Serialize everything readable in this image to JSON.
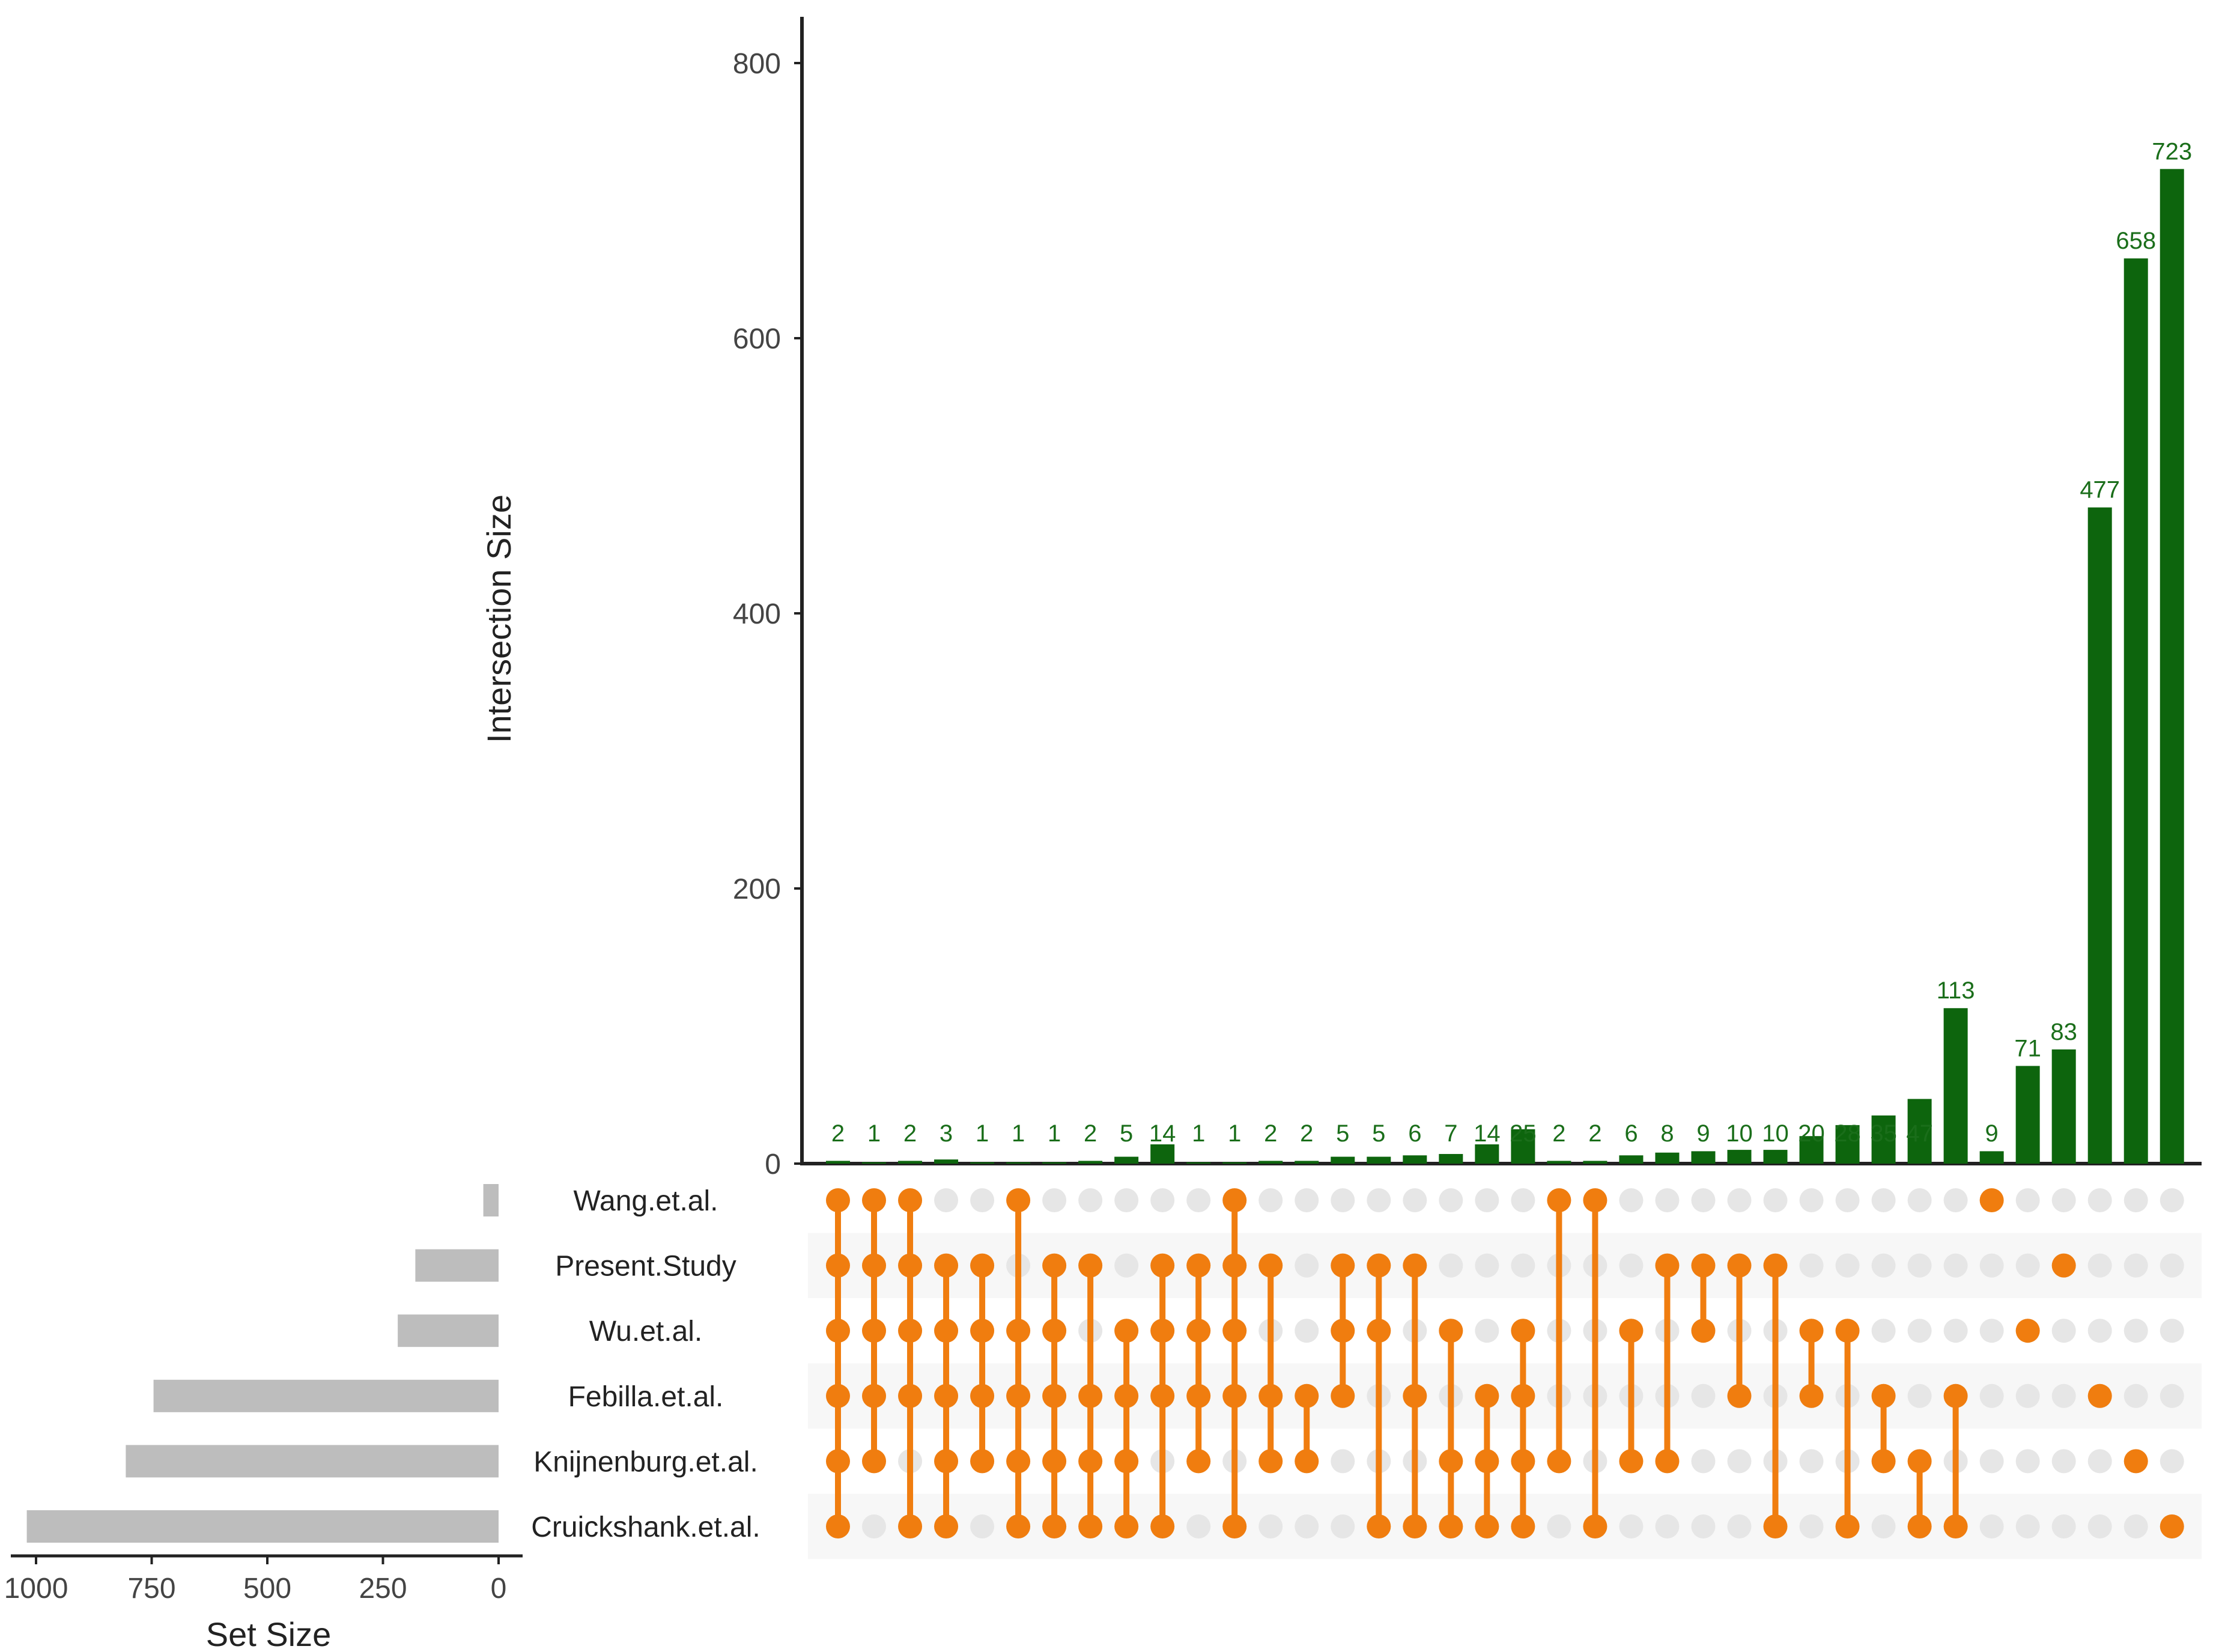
{
  "chart_data": {
    "type": "upset",
    "y_axis": {
      "label": "Intersection Size",
      "ticks": [
        0,
        200,
        400,
        600,
        800
      ],
      "ylim": [
        0,
        830
      ]
    },
    "x_axis_sets": {
      "label": "Set Size",
      "ticks": [
        1000,
        750,
        500,
        250,
        0
      ],
      "xlim": [
        0,
        1050
      ]
    },
    "sets": [
      {
        "name": "Wang.et.al.",
        "size": 33
      },
      {
        "name": "Present.Study",
        "size": 180
      },
      {
        "name": "Wu.et.al.",
        "size": 218
      },
      {
        "name": "Febilla.et.al.",
        "size": 746
      },
      {
        "name": "Knijnenburg.et.al.",
        "size": 806
      },
      {
        "name": "Cruickshank.et.al.",
        "size": 1020
      }
    ],
    "intersections": [
      {
        "size": 2,
        "sets": [
          0,
          1,
          2,
          3,
          4,
          5
        ]
      },
      {
        "size": 1,
        "sets": [
          0,
          1,
          2,
          3,
          4
        ]
      },
      {
        "size": 2,
        "sets": [
          0,
          1,
          2,
          3,
          5
        ]
      },
      {
        "size": 3,
        "sets": [
          1,
          2,
          3,
          4,
          5
        ]
      },
      {
        "size": 1,
        "sets": [
          1,
          2,
          3,
          4
        ]
      },
      {
        "size": 1,
        "sets": [
          0,
          2,
          3,
          4,
          5
        ]
      },
      {
        "size": 1,
        "sets": [
          1,
          2,
          3,
          4,
          5
        ]
      },
      {
        "size": 2,
        "sets": [
          1,
          3,
          4,
          5
        ]
      },
      {
        "size": 5,
        "sets": [
          2,
          3,
          4,
          5
        ]
      },
      {
        "size": 14,
        "sets": [
          1,
          2,
          3,
          5
        ]
      },
      {
        "size": 1,
        "sets": [
          1,
          2,
          3,
          4
        ]
      },
      {
        "size": 1,
        "sets": [
          0,
          1,
          2,
          3,
          5
        ]
      },
      {
        "size": 2,
        "sets": [
          1,
          3,
          4
        ]
      },
      {
        "size": 2,
        "sets": [
          3,
          4
        ]
      },
      {
        "size": 5,
        "sets": [
          1,
          2,
          3
        ]
      },
      {
        "size": 5,
        "sets": [
          1,
          2,
          5
        ]
      },
      {
        "size": 6,
        "sets": [
          1,
          3,
          5
        ]
      },
      {
        "size": 7,
        "sets": [
          2,
          4,
          5
        ]
      },
      {
        "size": 14,
        "sets": [
          3,
          4,
          5
        ]
      },
      {
        "size": 25,
        "sets": [
          2,
          3,
          4,
          5
        ]
      },
      {
        "size": 2,
        "sets": [
          0,
          4
        ]
      },
      {
        "size": 2,
        "sets": [
          0,
          5
        ]
      },
      {
        "size": 6,
        "sets": [
          2,
          4
        ]
      },
      {
        "size": 8,
        "sets": [
          1,
          4
        ]
      },
      {
        "size": 9,
        "sets": [
          1,
          2
        ]
      },
      {
        "size": 10,
        "sets": [
          1,
          3
        ]
      },
      {
        "size": 10,
        "sets": [
          1,
          5
        ]
      },
      {
        "size": 20,
        "sets": [
          2,
          3
        ]
      },
      {
        "size": 28,
        "sets": [
          2,
          5
        ]
      },
      {
        "size": 35,
        "sets": [
          3,
          4
        ]
      },
      {
        "size": 47,
        "sets": [
          4,
          5
        ]
      },
      {
        "size": 113,
        "sets": [
          3,
          5
        ]
      },
      {
        "size": 9,
        "sets": [
          0
        ]
      },
      {
        "size": 71,
        "sets": [
          2
        ]
      },
      {
        "size": 83,
        "sets": [
          1
        ]
      },
      {
        "size": 477,
        "sets": [
          3
        ]
      },
      {
        "size": 658,
        "sets": [
          4
        ]
      },
      {
        "size": 723,
        "sets": [
          5
        ]
      }
    ],
    "colors": {
      "bar": "#0d650d",
      "bar_label": "#1a6e1a",
      "dot_active": "#f07d0f",
      "dot_inactive": "#e6e6e6",
      "set_bar": "#bdbdbd",
      "axis": "#222222"
    }
  }
}
